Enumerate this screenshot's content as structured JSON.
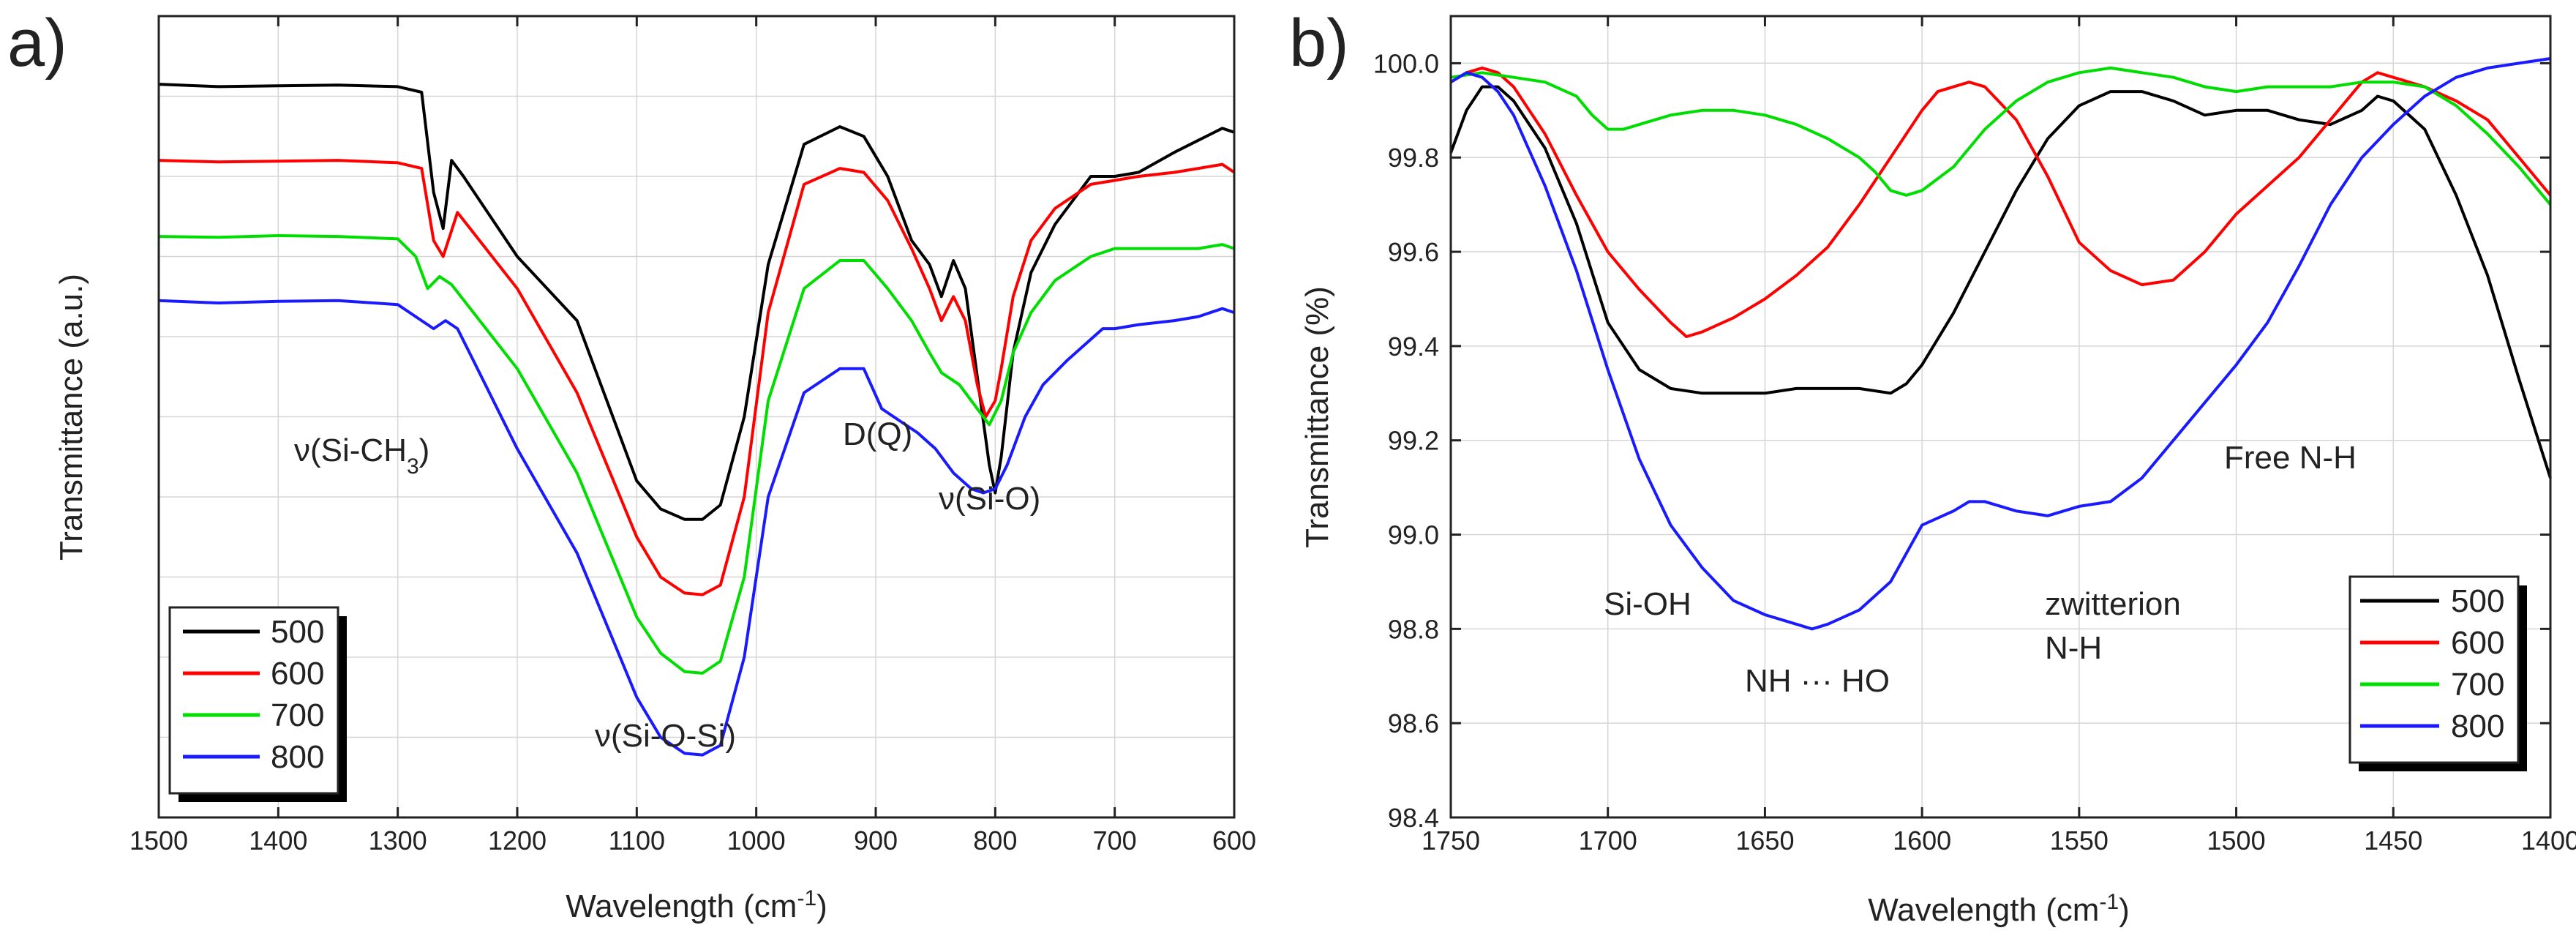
{
  "chart_data": [
    {
      "id": "a",
      "type": "line",
      "panel_label": "a)",
      "xlabel_main": "Wavelength (cm",
      "xlabel_sup": "-1",
      "xlabel_end": ")",
      "ylabel": "Transmittance (a.u.)",
      "xlim": [
        1500,
        600
      ],
      "ylim": [
        0,
        10
      ],
      "xticks": [
        1500,
        1400,
        1300,
        1200,
        1100,
        1000,
        900,
        800,
        700,
        600
      ],
      "xtick_labels": [
        "1500",
        "1400",
        "1300",
        "1200",
        "1100",
        "1000",
        "900",
        "800",
        "700",
        "600"
      ],
      "yticks_unlabeled": [
        1,
        2,
        3,
        4,
        5,
        6,
        7,
        8,
        9
      ],
      "grid": true,
      "legend": {
        "position": "lower-left",
        "entries": [
          "500",
          "600",
          "700",
          "800"
        ]
      },
      "annotations": [
        {
          "id": "si-ch3",
          "main": "ν(Si-CH",
          "sub": "3",
          "end": ")",
          "x": 1330,
          "y": 4.15
        },
        {
          "id": "dq",
          "text": "D(Q)",
          "x": 897,
          "y": 4.3
        },
        {
          "id": "si-o",
          "text": "ν(Si-O)",
          "x": 780,
          "y": 3.4
        },
        {
          "id": "si-o-si",
          "text": "ν(Si-O-Si)",
          "x": 1040,
          "y": 0.6
        }
      ],
      "series": [
        {
          "name": "500",
          "color": "#000000",
          "x": [
            1500,
            1450,
            1400,
            1350,
            1300,
            1280,
            1270,
            1262,
            1255,
            1245,
            1200,
            1150,
            1100,
            1080,
            1060,
            1045,
            1030,
            1010,
            990,
            960,
            930,
            910,
            890,
            870,
            855,
            845,
            835,
            825,
            815,
            805,
            800,
            795,
            785,
            770,
            750,
            720,
            700,
            680,
            650,
            630,
            610,
            600
          ],
          "y": [
            9.15,
            9.12,
            9.13,
            9.14,
            9.12,
            9.05,
            7.8,
            7.35,
            8.2,
            8.0,
            7.0,
            6.2,
            4.2,
            3.85,
            3.72,
            3.72,
            3.9,
            5.0,
            6.9,
            8.4,
            8.62,
            8.5,
            8.0,
            7.2,
            6.9,
            6.5,
            6.95,
            6.6,
            5.5,
            4.4,
            4.05,
            4.5,
            5.8,
            6.8,
            7.4,
            8.0,
            8.0,
            8.05,
            8.3,
            8.45,
            8.6,
            8.55
          ]
        },
        {
          "name": "600",
          "color": "#ff0000",
          "x": [
            1500,
            1450,
            1400,
            1350,
            1300,
            1280,
            1270,
            1262,
            1250,
            1200,
            1150,
            1100,
            1080,
            1060,
            1045,
            1030,
            1010,
            990,
            960,
            930,
            910,
            890,
            870,
            855,
            845,
            835,
            825,
            815,
            808,
            800,
            795,
            785,
            770,
            750,
            720,
            700,
            680,
            650,
            630,
            610,
            600
          ],
          "y": [
            8.2,
            8.18,
            8.19,
            8.2,
            8.17,
            8.1,
            7.2,
            7.0,
            7.55,
            6.6,
            5.3,
            3.5,
            3.0,
            2.8,
            2.78,
            2.9,
            4.0,
            6.3,
            7.9,
            8.1,
            8.05,
            7.7,
            7.1,
            6.6,
            6.2,
            6.5,
            6.2,
            5.4,
            5.0,
            5.2,
            5.6,
            6.5,
            7.2,
            7.6,
            7.9,
            7.95,
            8.0,
            8.05,
            8.1,
            8.15,
            8.05
          ]
        },
        {
          "name": "700",
          "color": "#00dd00",
          "x": [
            1500,
            1450,
            1400,
            1350,
            1300,
            1285,
            1275,
            1265,
            1255,
            1200,
            1150,
            1100,
            1080,
            1060,
            1045,
            1030,
            1010,
            990,
            960,
            930,
            910,
            890,
            870,
            855,
            845,
            830,
            815,
            805,
            795,
            785,
            770,
            750,
            720,
            700,
            680,
            650,
            630,
            610,
            600
          ],
          "y": [
            7.25,
            7.24,
            7.26,
            7.25,
            7.22,
            7.0,
            6.6,
            6.75,
            6.65,
            5.6,
            4.3,
            2.5,
            2.05,
            1.82,
            1.8,
            1.95,
            3.0,
            5.2,
            6.6,
            6.95,
            6.95,
            6.6,
            6.2,
            5.8,
            5.55,
            5.4,
            5.1,
            4.9,
            5.2,
            5.8,
            6.3,
            6.7,
            7.0,
            7.1,
            7.1,
            7.1,
            7.1,
            7.15,
            7.1
          ]
        },
        {
          "name": "800",
          "color": "#1a1aff",
          "x": [
            1500,
            1450,
            1400,
            1350,
            1300,
            1280,
            1270,
            1260,
            1250,
            1240,
            1200,
            1150,
            1100,
            1080,
            1060,
            1045,
            1030,
            1010,
            990,
            960,
            930,
            910,
            895,
            880,
            865,
            850,
            835,
            820,
            810,
            800,
            790,
            775,
            760,
            740,
            710,
            700,
            680,
            650,
            630,
            610,
            600
          ],
          "y": [
            6.45,
            6.42,
            6.44,
            6.45,
            6.4,
            6.2,
            6.1,
            6.2,
            6.1,
            5.8,
            4.6,
            3.3,
            1.5,
            1.0,
            0.8,
            0.78,
            0.9,
            2.0,
            4.0,
            5.3,
            5.6,
            5.6,
            5.1,
            4.95,
            4.8,
            4.6,
            4.3,
            4.1,
            4.05,
            4.1,
            4.4,
            5.0,
            5.4,
            5.7,
            6.1,
            6.1,
            6.15,
            6.2,
            6.25,
            6.35,
            6.3
          ]
        }
      ]
    },
    {
      "id": "b",
      "type": "line",
      "panel_label": "b)",
      "xlabel_main": "Wavelength (cm",
      "xlabel_sup": "-1",
      "xlabel_end": ")",
      "ylabel": "Transmittance (%)",
      "xlim": [
        1750,
        1400
      ],
      "ylim": [
        98.4,
        100.1
      ],
      "xticks": [
        1750,
        1700,
        1650,
        1600,
        1550,
        1500,
        1450,
        1400
      ],
      "xtick_labels": [
        "1750",
        "1700",
        "1650",
        "1600",
        "1550",
        "1500",
        "1450",
        "1400"
      ],
      "yticks": [
        98.4,
        98.6,
        98.8,
        99.0,
        99.2,
        99.4,
        99.6,
        99.8,
        100.0
      ],
      "ytick_labels": [
        "98.4",
        "98.6",
        "98.8",
        "99.0",
        "99.2",
        "99.4",
        "99.6",
        "99.8",
        "100.0"
      ],
      "grid": true,
      "legend": {
        "position": "lower-right",
        "entries": [
          "500",
          "600",
          "700",
          "800"
        ]
      },
      "annotations": [
        {
          "id": "si-oh",
          "text": "Si-OH",
          "x": 1685,
          "y": 98.8
        },
        {
          "id": "nh-ho",
          "text": "NH ··· HO",
          "x": 1630,
          "y": 98.62
        },
        {
          "id": "zwitterion",
          "text": "zwitterion",
          "x": 1537,
          "y": 98.8
        },
        {
          "id": "zwitterion-nh",
          "text": "N-H",
          "x": 1545,
          "y": 98.7
        },
        {
          "id": "free-nh",
          "text": "Free N-H",
          "x": 1475,
          "y": 99.11
        }
      ],
      "series": [
        {
          "name": "500",
          "color": "#000000",
          "x": [
            1750,
            1745,
            1740,
            1735,
            1730,
            1720,
            1710,
            1700,
            1690,
            1680,
            1670,
            1660,
            1650,
            1640,
            1630,
            1620,
            1610,
            1605,
            1600,
            1590,
            1580,
            1570,
            1560,
            1550,
            1540,
            1530,
            1520,
            1510,
            1500,
            1490,
            1480,
            1470,
            1460,
            1455,
            1450,
            1440,
            1430,
            1420,
            1410,
            1400
          ],
          "y": [
            99.81,
            99.9,
            99.95,
            99.95,
            99.92,
            99.82,
            99.66,
            99.45,
            99.35,
            99.31,
            99.3,
            99.3,
            99.3,
            99.31,
            99.31,
            99.31,
            99.3,
            99.32,
            99.36,
            99.47,
            99.6,
            99.73,
            99.84,
            99.91,
            99.94,
            99.94,
            99.92,
            99.89,
            99.9,
            99.9,
            99.88,
            99.87,
            99.9,
            99.93,
            99.92,
            99.86,
            99.72,
            99.55,
            99.33,
            99.12
          ]
        },
        {
          "name": "600",
          "color": "#ff0000",
          "x": [
            1750,
            1745,
            1740,
            1735,
            1730,
            1720,
            1710,
            1700,
            1690,
            1680,
            1675,
            1670,
            1660,
            1650,
            1640,
            1630,
            1620,
            1610,
            1600,
            1595,
            1590,
            1585,
            1580,
            1570,
            1560,
            1550,
            1540,
            1530,
            1520,
            1510,
            1500,
            1490,
            1480,
            1470,
            1460,
            1455,
            1450,
            1440,
            1430,
            1420,
            1410,
            1400
          ],
          "y": [
            99.96,
            99.98,
            99.99,
            99.98,
            99.95,
            99.85,
            99.72,
            99.6,
            99.52,
            99.45,
            99.42,
            99.43,
            99.46,
            99.5,
            99.55,
            99.61,
            99.7,
            99.8,
            99.9,
            99.94,
            99.95,
            99.96,
            99.95,
            99.88,
            99.76,
            99.62,
            99.56,
            99.53,
            99.54,
            99.6,
            99.68,
            99.74,
            99.8,
            99.88,
            99.96,
            99.98,
            99.97,
            99.95,
            99.92,
            99.88,
            99.8,
            99.72
          ]
        },
        {
          "name": "700",
          "color": "#00dd00",
          "x": [
            1750,
            1740,
            1730,
            1720,
            1710,
            1705,
            1700,
            1695,
            1690,
            1680,
            1670,
            1660,
            1650,
            1640,
            1630,
            1620,
            1615,
            1610,
            1605,
            1600,
            1590,
            1580,
            1570,
            1560,
            1550,
            1540,
            1530,
            1520,
            1510,
            1500,
            1490,
            1480,
            1470,
            1460,
            1450,
            1440,
            1430,
            1420,
            1410,
            1400
          ],
          "y": [
            99.97,
            99.98,
            99.97,
            99.96,
            99.93,
            99.89,
            99.86,
            99.86,
            99.87,
            99.89,
            99.9,
            99.9,
            99.89,
            99.87,
            99.84,
            99.8,
            99.77,
            99.73,
            99.72,
            99.73,
            99.78,
            99.86,
            99.92,
            99.96,
            99.98,
            99.99,
            99.98,
            99.97,
            99.95,
            99.94,
            99.95,
            99.95,
            99.95,
            99.96,
            99.96,
            99.95,
            99.91,
            99.85,
            99.78,
            99.7
          ]
        },
        {
          "name": "800",
          "color": "#1a1aff",
          "x": [
            1750,
            1745,
            1740,
            1735,
            1730,
            1720,
            1710,
            1700,
            1690,
            1680,
            1670,
            1660,
            1650,
            1640,
            1635,
            1630,
            1620,
            1610,
            1600,
            1590,
            1585,
            1580,
            1570,
            1560,
            1550,
            1540,
            1530,
            1520,
            1510,
            1500,
            1490,
            1480,
            1470,
            1460,
            1450,
            1440,
            1430,
            1420,
            1410,
            1400
          ],
          "y": [
            99.96,
            99.98,
            99.97,
            99.94,
            99.89,
            99.74,
            99.56,
            99.35,
            99.16,
            99.02,
            98.93,
            98.86,
            98.83,
            98.81,
            98.8,
            98.81,
            98.84,
            98.9,
            99.02,
            99.05,
            99.07,
            99.07,
            99.05,
            99.04,
            99.06,
            99.07,
            99.12,
            99.2,
            99.28,
            99.36,
            99.45,
            99.57,
            99.7,
            99.8,
            99.87,
            99.93,
            99.97,
            99.99,
            100.0,
            100.01
          ]
        }
      ]
    }
  ]
}
